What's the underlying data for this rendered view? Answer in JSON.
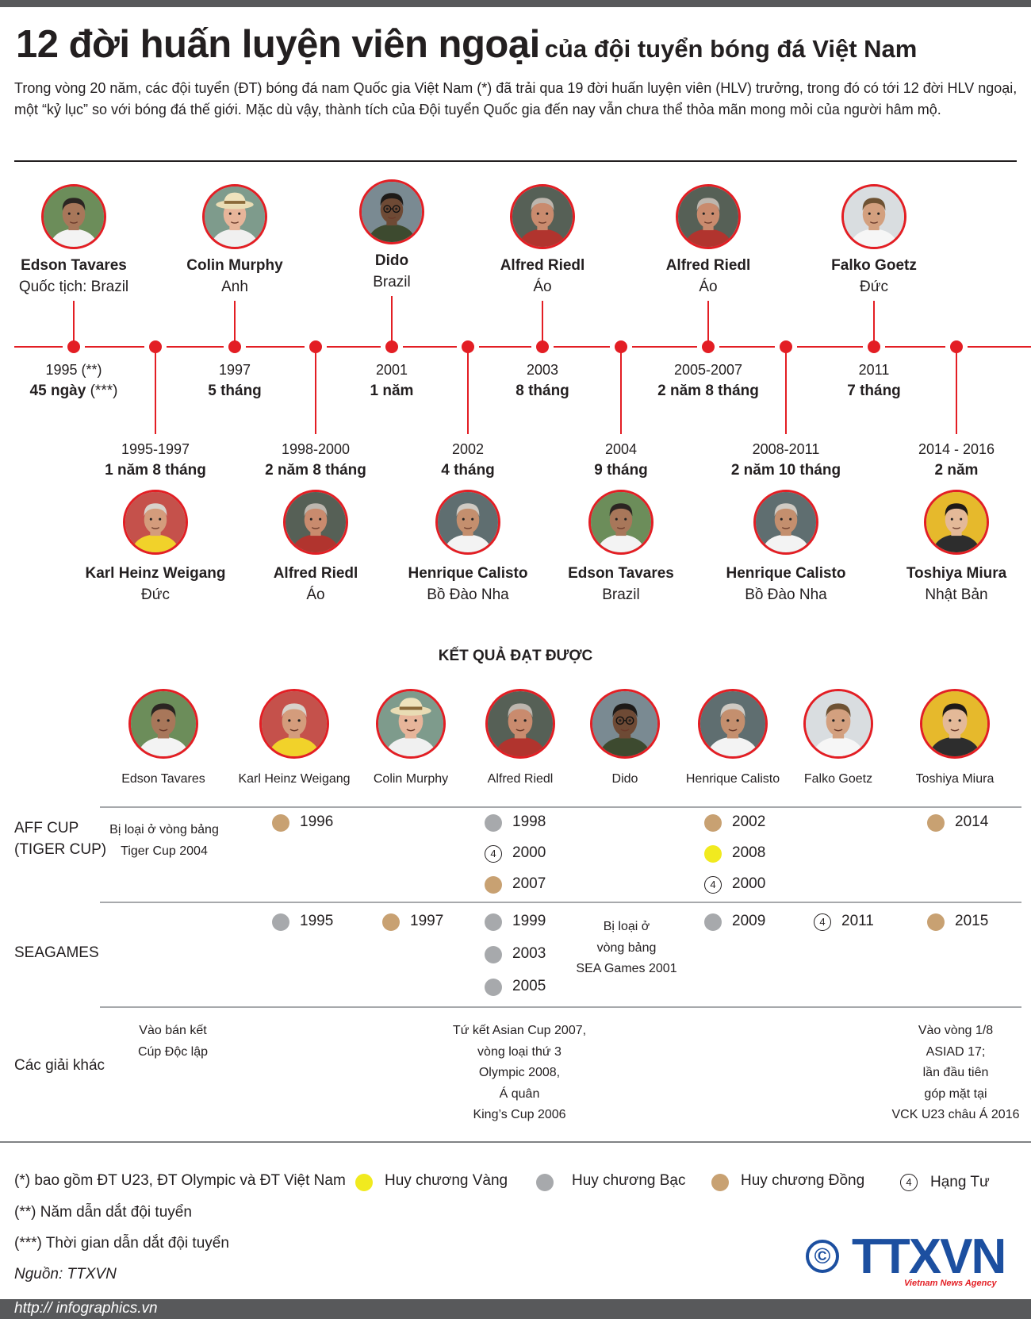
{
  "header": {
    "title_main": "12 đời huấn luyện viên ngoại",
    "title_sub": "của đội tuyển bóng đá Việt Nam",
    "intro": "Trong vòng 20 năm, các đội tuyển (ĐT) bóng đá nam Quốc gia Việt Nam (*) đã trải qua 19 đời huấn luyện viên (HLV) trưởng, trong đó có tới 12 đời HLV ngoại, một “kỷ lục” so với bóng đá thế giới. Mặc dù vậy, thành tích của Đội tuyển Quốc gia đến nay vẫn chưa thể thỏa mãn mong mỏi của người hâm mộ."
  },
  "timeline_top": [
    {
      "name": "Edson Tavares",
      "nationality": "Quốc tịch: Brazil",
      "year": "1995 (**)",
      "duration": "45 ngày",
      "duration_note": " (***)",
      "portrait": "edson"
    },
    {
      "name": "Colin Murphy",
      "nationality": "Anh",
      "year": "1997",
      "duration": "5 tháng",
      "duration_note": "",
      "portrait": "colin"
    },
    {
      "name": "Dido",
      "nationality": "Brazil",
      "year": "2001",
      "duration": "1 năm",
      "duration_note": "",
      "portrait": "dido"
    },
    {
      "name": "Alfred Riedl",
      "nationality": "Áo",
      "year": "2003",
      "duration": "8 tháng",
      "duration_note": "",
      "portrait": "riedl"
    },
    {
      "name": "Alfred Riedl",
      "nationality": "Áo",
      "year": "2005-2007",
      "duration": "2 năm 8 tháng",
      "duration_note": "",
      "portrait": "riedl"
    },
    {
      "name": "Falko Goetz",
      "nationality": "Đức",
      "year": "2011",
      "duration": "7 tháng",
      "duration_note": "",
      "portrait": "falko"
    }
  ],
  "timeline_bottom": [
    {
      "name": "Karl Heinz Weigang",
      "nationality": "Đức",
      "year": "1995-1997",
      "duration": "1 năm 8 tháng",
      "portrait": "karl"
    },
    {
      "name": "Alfred Riedl",
      "nationality": "Áo",
      "year": "1998-2000",
      "duration": "2 năm 8 tháng",
      "portrait": "riedl"
    },
    {
      "name": "Henrique Calisto",
      "nationality": "Bồ Đào Nha",
      "year": "2002",
      "duration": "4 tháng",
      "portrait": "calisto"
    },
    {
      "name": "Edson Tavares",
      "nationality": "Brazil",
      "year": "2004",
      "duration": "9 tháng",
      "portrait": "edson"
    },
    {
      "name": "Henrique Calisto",
      "nationality": "Bồ Đào Nha",
      "year": "2008-2011",
      "duration": "2 năm 10 tháng",
      "portrait": "calisto"
    },
    {
      "name": "Toshiya Miura",
      "nationality": "Nhật Bản",
      "year": "2014 - 2016",
      "duration": "2 năm",
      "portrait": "miura"
    }
  ],
  "results": {
    "title": "KẾT QUẢ ĐẠT ĐƯỢC",
    "coaches": [
      {
        "name": "Edson Tavares",
        "portrait": "edson"
      },
      {
        "name": "Karl Heinz Weigang",
        "portrait": "karl"
      },
      {
        "name": "Colin Murphy",
        "portrait": "colin"
      },
      {
        "name": "Alfred Riedl",
        "portrait": "riedl"
      },
      {
        "name": "Dido",
        "portrait": "dido"
      },
      {
        "name": "Henrique Calisto",
        "portrait": "calisto"
      },
      {
        "name": "Falko Goetz",
        "portrait": "falko"
      },
      {
        "name": "Toshiya Miura",
        "portrait": "miura"
      }
    ],
    "rows": {
      "aff": {
        "label_line1": "AFF CUP",
        "label_line2": "(TIGER CUP)"
      },
      "sea": {
        "label": "SEAGAMES"
      },
      "other": {
        "label": "Các giải khác"
      }
    },
    "aff_notes": {
      "edson_line1": "Bị loại ở vòng bảng",
      "edson_line2": "Tiger Cup 2004"
    },
    "aff_medals": [
      {
        "coach": "karl",
        "type": "bronze",
        "year": "1996"
      },
      {
        "coach": "riedl",
        "type": "silver",
        "year": "1998"
      },
      {
        "coach": "riedl",
        "type": "fourth",
        "year": "2000"
      },
      {
        "coach": "riedl",
        "type": "bronze",
        "year": "2007"
      },
      {
        "coach": "calisto",
        "type": "bronze",
        "year": "2002"
      },
      {
        "coach": "calisto",
        "type": "gold",
        "year": "2008"
      },
      {
        "coach": "calisto",
        "type": "fourth",
        "year": "2000"
      },
      {
        "coach": "miura",
        "type": "bronze",
        "year": "2014"
      }
    ],
    "sea_medals": [
      {
        "coach": "karl",
        "type": "silver",
        "year": "1995"
      },
      {
        "coach": "colin",
        "type": "bronze",
        "year": "1997"
      },
      {
        "coach": "riedl",
        "type": "silver",
        "year": "1999"
      },
      {
        "coach": "riedl",
        "type": "silver",
        "year": "2003"
      },
      {
        "coach": "riedl",
        "type": "silver",
        "year": "2005"
      },
      {
        "coach": "calisto",
        "type": "silver",
        "year": "2009"
      },
      {
        "coach": "falko",
        "type": "fourth",
        "year": "2011"
      },
      {
        "coach": "miura",
        "type": "bronze",
        "year": "2015"
      }
    ],
    "sea_notes": {
      "dido_line1": "Bị loại ở",
      "dido_line2": "vòng bảng",
      "dido_line3": "SEA Games 2001"
    },
    "other_notes": {
      "karl_line1": "Vào bán kết",
      "karl_line2": "Cúp Độc lập",
      "riedl_line1": "Tứ kết Asian Cup 2007,",
      "riedl_line2": "vòng loại thứ 3",
      "riedl_line3": "Olympic 2008,",
      "riedl_line4": "Á quân",
      "riedl_line5": "King’s Cup 2006",
      "miura_line1": "Vào vòng 1/8",
      "miura_line2": "ASIAD 17;",
      "miura_line3": "lần đầu tiên",
      "miura_line4": "góp mặt tại",
      "miura_line5": "VCK U23 châu Á 2016"
    }
  },
  "legend": {
    "note1": "(*) bao gồm ĐT U23, ĐT Olympic và ĐT Việt Nam",
    "note2": "(**) Năm dẫn dắt đội tuyển",
    "note3": "(***) Thời gian dẫn dắt đội tuyển",
    "source": "Nguồn: TTXVN",
    "gold": "Huy chương Vàng",
    "silver": "Huy chương Bạc",
    "bronze": "Huy chương Đồng",
    "fourth": "Hạng Tư",
    "fourth_mark": "4"
  },
  "branding": {
    "copyright_symbol": "©",
    "logo": "TTXVN",
    "agency": "Vietnam News Agency",
    "url": "http:// infographics.vn"
  },
  "colors": {
    "timeline": "#e31e24",
    "gold": "#f1ea1f",
    "silver": "#a7a9ac",
    "bronze": "#c8a172",
    "logo_blue": "#1c4fa0"
  }
}
